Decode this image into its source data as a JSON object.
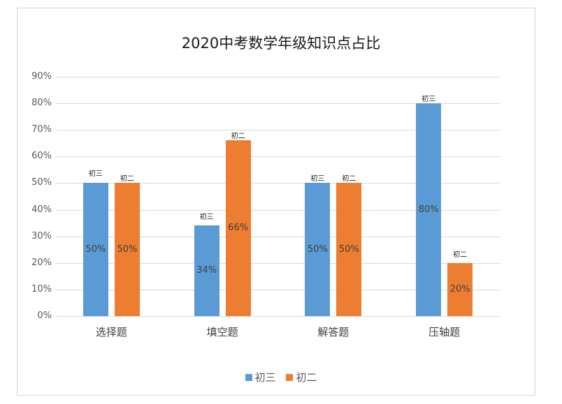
{
  "chart_data": {
    "type": "bar",
    "title": "2020中考数学年级知识点占比",
    "categories": [
      "选择题",
      "填空题",
      "解答题",
      "压轴题"
    ],
    "series": [
      {
        "name": "初三",
        "color": "#5b9bd5",
        "values": [
          50,
          34,
          50,
          80
        ]
      },
      {
        "name": "初二",
        "color": "#ed7d31",
        "values": [
          50,
          66,
          50,
          20
        ]
      }
    ],
    "value_labels": {
      "初三": [
        "50%",
        "34%",
        "50%",
        "80%"
      ],
      "初二": [
        "50%",
        "66%",
        "50%",
        "20%"
      ]
    },
    "yticks": [
      "0%",
      "10%",
      "20%",
      "30%",
      "40%",
      "50%",
      "60%",
      "70%",
      "80%",
      "90%"
    ],
    "ylim": [
      0,
      90
    ],
    "xlabel": "",
    "ylabel": "",
    "grid": true,
    "legend_position": "bottom"
  },
  "legend": [
    {
      "label": "初三",
      "color": "#5b9bd5"
    },
    {
      "label": "初二",
      "color": "#ed7d31"
    }
  ]
}
